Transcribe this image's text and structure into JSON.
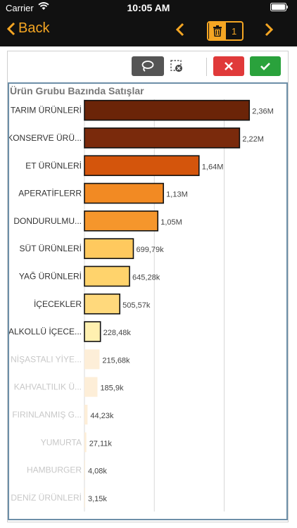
{
  "status_bar": {
    "carrier": "Carrier",
    "time": "10:05 AM"
  },
  "nav": {
    "back_label": "Back",
    "selection_count": "1"
  },
  "chart_data": {
    "type": "bar",
    "orientation": "horizontal",
    "title": "Ürün Grubu Bazında Satışlar",
    "categories": [
      "TARIM ÜRÜNLERİ",
      "KONSERVE ÜRÜ...",
      "ET ÜRÜNLERİ",
      "APERATİFLERR",
      "DONDURULMU...",
      "SÜT ÜRÜNLERİ",
      "YAĞ ÜRÜNLERİ",
      "İÇECEKLER",
      "ALKOLLÜ İÇECE...",
      "NİŞASTALI YİYE...",
      "KAHVALTILIK Ü...",
      "FIRINLANMIŞ G...",
      "YUMURTA",
      "HAMBURGER",
      "DENİZ ÜRÜNLERİ"
    ],
    "values": [
      2360000,
      2220000,
      1640000,
      1130000,
      1050000,
      699790,
      645280,
      505570,
      228480,
      215680,
      185900,
      44230,
      27110,
      4080,
      3150
    ],
    "value_labels": [
      "2,36M",
      "2,22M",
      "1,64M",
      "1,13M",
      "1,05M",
      "699,79k",
      "645,28k",
      "505,57k",
      "228,48k",
      "215,68k",
      "185,9k",
      "44,23k",
      "27,11k",
      "4,08k",
      "3,15k"
    ],
    "selected": [
      true,
      true,
      true,
      true,
      true,
      true,
      true,
      true,
      true,
      false,
      false,
      false,
      false,
      false,
      false
    ],
    "colors": [
      "#6b2408",
      "#7a2a0c",
      "#d4550c",
      "#f28a23",
      "#f5962c",
      "#ffc95e",
      "#ffd36c",
      "#ffd97c",
      "#fff0b0",
      "#fdeed8",
      "#fdeed8",
      "#fdeed8",
      "#fdeed8",
      "#fdeed8",
      "#fdeed8"
    ],
    "xlim": [
      0,
      2700000
    ],
    "gridlines": [
      0,
      1000000,
      2000000
    ],
    "grid": true
  }
}
